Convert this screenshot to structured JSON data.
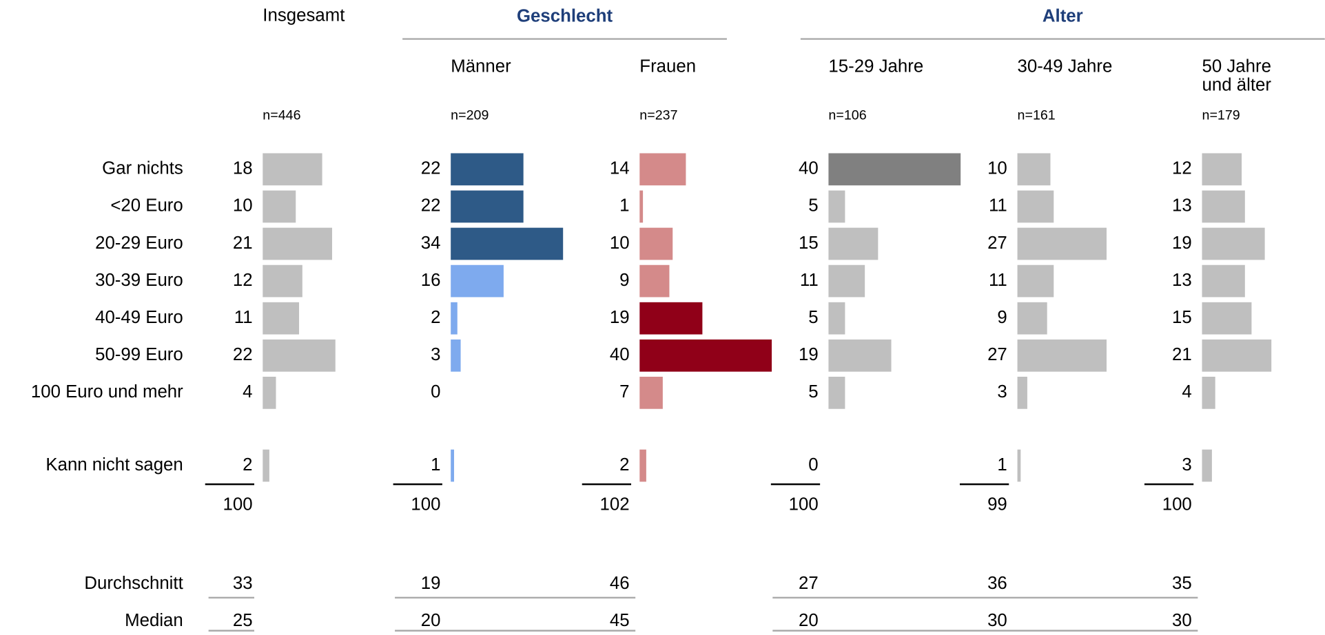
{
  "total_column": {
    "name": "Insgesamt",
    "n": "n=446",
    "values": [
      18,
      10,
      21,
      12,
      11,
      22,
      4,
      2
    ],
    "colors": [
      "#bfbfbf",
      "#bfbfbf",
      "#bfbfbf",
      "#bfbfbf",
      "#bfbfbf",
      "#bfbfbf",
      "#bfbfbf",
      "#bfbfbf"
    ],
    "total": 100,
    "mean": 33,
    "median": 25
  },
  "groups": [
    {
      "label": "Geschlecht",
      "columns": [
        {
          "name": "Männer",
          "n": "n=209",
          "values": [
            22,
            22,
            34,
            16,
            2,
            3,
            0,
            1
          ],
          "colors": [
            "#2e5a87",
            "#2e5a87",
            "#2e5a87",
            "#7eaaee",
            "#7eaaee",
            "#7eaaee",
            "#7eaaee",
            "#7eaaee"
          ],
          "total": 100,
          "mean": 19,
          "median": 20
        },
        {
          "name": "Frauen",
          "n": "n=237",
          "values": [
            14,
            1,
            10,
            9,
            19,
            40,
            7,
            2
          ],
          "colors": [
            "#d48a8a",
            "#d48a8a",
            "#d48a8a",
            "#d48a8a",
            "#900018",
            "#900018",
            "#d48a8a",
            "#d48a8a"
          ],
          "total": 102,
          "mean": 46,
          "median": 45
        }
      ]
    },
    {
      "label": "Alter",
      "columns": [
        {
          "name": "15-29 Jahre",
          "n": "n=106",
          "values": [
            40,
            5,
            15,
            11,
            5,
            19,
            5,
            0
          ],
          "colors": [
            "#808080",
            "#bfbfbf",
            "#bfbfbf",
            "#bfbfbf",
            "#bfbfbf",
            "#bfbfbf",
            "#bfbfbf",
            "#bfbfbf"
          ],
          "total": 100,
          "mean": 27,
          "median": 20
        },
        {
          "name": "30-49 Jahre",
          "n": "n=161",
          "values": [
            10,
            11,
            27,
            11,
            9,
            27,
            3,
            1
          ],
          "colors": [
            "#bfbfbf",
            "#bfbfbf",
            "#bfbfbf",
            "#bfbfbf",
            "#bfbfbf",
            "#bfbfbf",
            "#bfbfbf",
            "#bfbfbf"
          ],
          "total": 99,
          "mean": 36,
          "median": 30
        },
        {
          "name": "50 Jahre\nund älter",
          "n": "n=179",
          "values": [
            12,
            13,
            19,
            13,
            15,
            21,
            4,
            3
          ],
          "colors": [
            "#bfbfbf",
            "#bfbfbf",
            "#bfbfbf",
            "#bfbfbf",
            "#bfbfbf",
            "#bfbfbf",
            "#bfbfbf",
            "#bfbfbf"
          ],
          "total": 100,
          "mean": 35,
          "median": 30
        }
      ]
    }
  ],
  "row_labels": [
    "Gar nichts",
    "<20 Euro",
    "20-29 Euro",
    "30-39 Euro",
    "40-49 Euro",
    "50-99 Euro",
    "100 Euro und mehr",
    "Kann nicht sagen"
  ],
  "summary_labels": [
    "Durchschnitt",
    "Median"
  ]
}
